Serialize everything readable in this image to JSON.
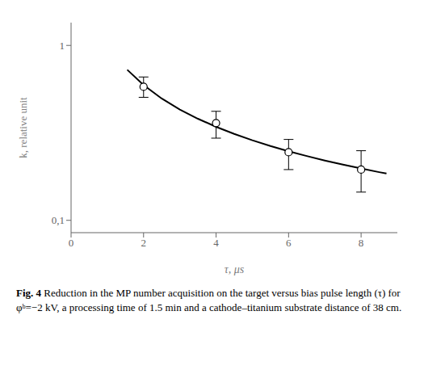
{
  "chart_data": {
    "type": "scatter",
    "x_label": "τ, μs",
    "y_label": "k, relative unit",
    "annotations": [
      "Fig. 4",
      "Reduction in the MP number acquisition on the target versus bias pulse length (τ) for φᵇ=−2 kV, a processing time of 1.5 min and a cathode–titanium substrate distance of 38 cm."
    ],
    "log": "y",
    "grid": false,
    "xlim": [
      0,
      9
    ],
    "xticks": [
      0,
      2,
      4,
      6,
      8
    ],
    "ylim": [
      0.085,
      1.35
    ],
    "yticks": [
      {
        "value": 0.1,
        "label": "0,1"
      },
      1
    ],
    "series": [
      {
        "type": "line",
        "color": "#000000",
        "marker": "none",
        "x": [
          1.55,
          2,
          2.5,
          3,
          3.5,
          4,
          4.5,
          5,
          5.5,
          6,
          6.5,
          7,
          7.5,
          8,
          8.5,
          8.7
        ],
        "values": [
          0.7256,
          0.593,
          0.4969,
          0.4301,
          0.3807,
          0.3425,
          0.312,
          0.287,
          0.2661,
          0.2484,
          0.2331,
          0.2198,
          0.2081,
          0.1978,
          0.1885,
          0.1851
        ]
      },
      {
        "type": "scatter",
        "color": "#000000",
        "marker": "open_circle",
        "x": [
          2,
          4,
          6,
          8
        ],
        "values": [
          0.58,
          0.36,
          0.245,
          0.195
        ],
        "error_upper": [
          0.08,
          0.06,
          0.045,
          0.055
        ],
        "error_lower": [
          0.075,
          0.065,
          0.05,
          0.05
        ]
      }
    ]
  }
}
